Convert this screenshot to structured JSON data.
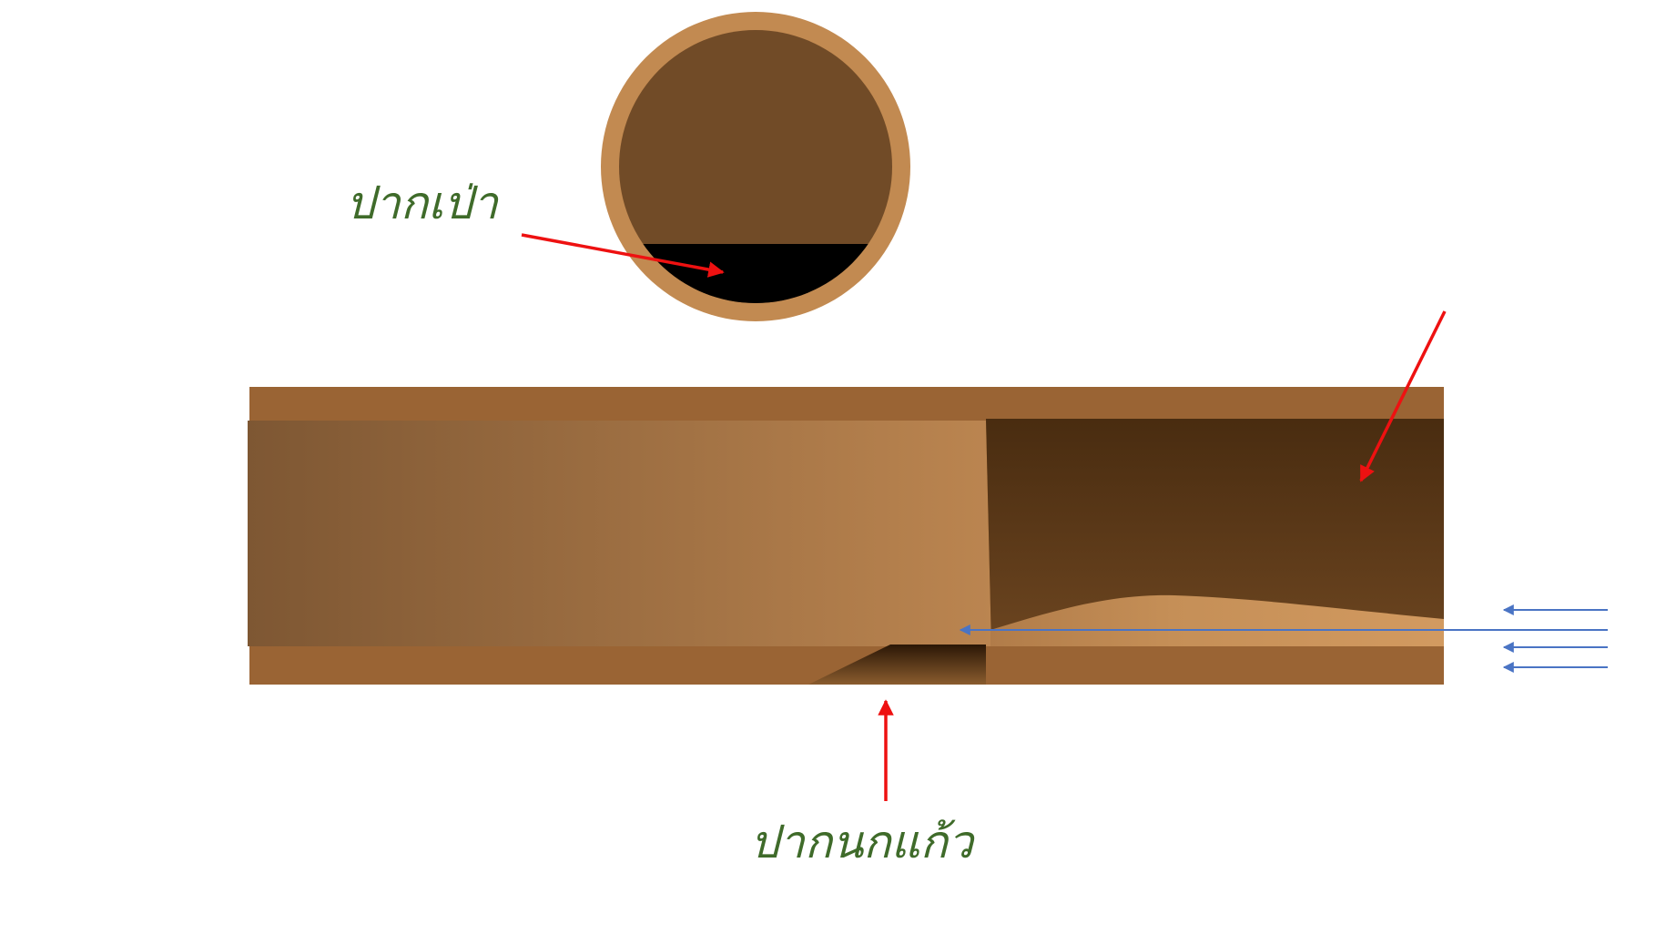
{
  "labels": {
    "mouthpiece": "ปากเป่า",
    "labium": "ปากนกแก้ว"
  },
  "colors": {
    "label_text": "#3f6b2a",
    "pointer_arrow": "#ee1111",
    "airflow_arrow": "#4a74c4",
    "tube_wall": "#9a6434",
    "bore_dark": "#714b27",
    "ring_outer": "#c28a51",
    "slot": "#000000"
  }
}
